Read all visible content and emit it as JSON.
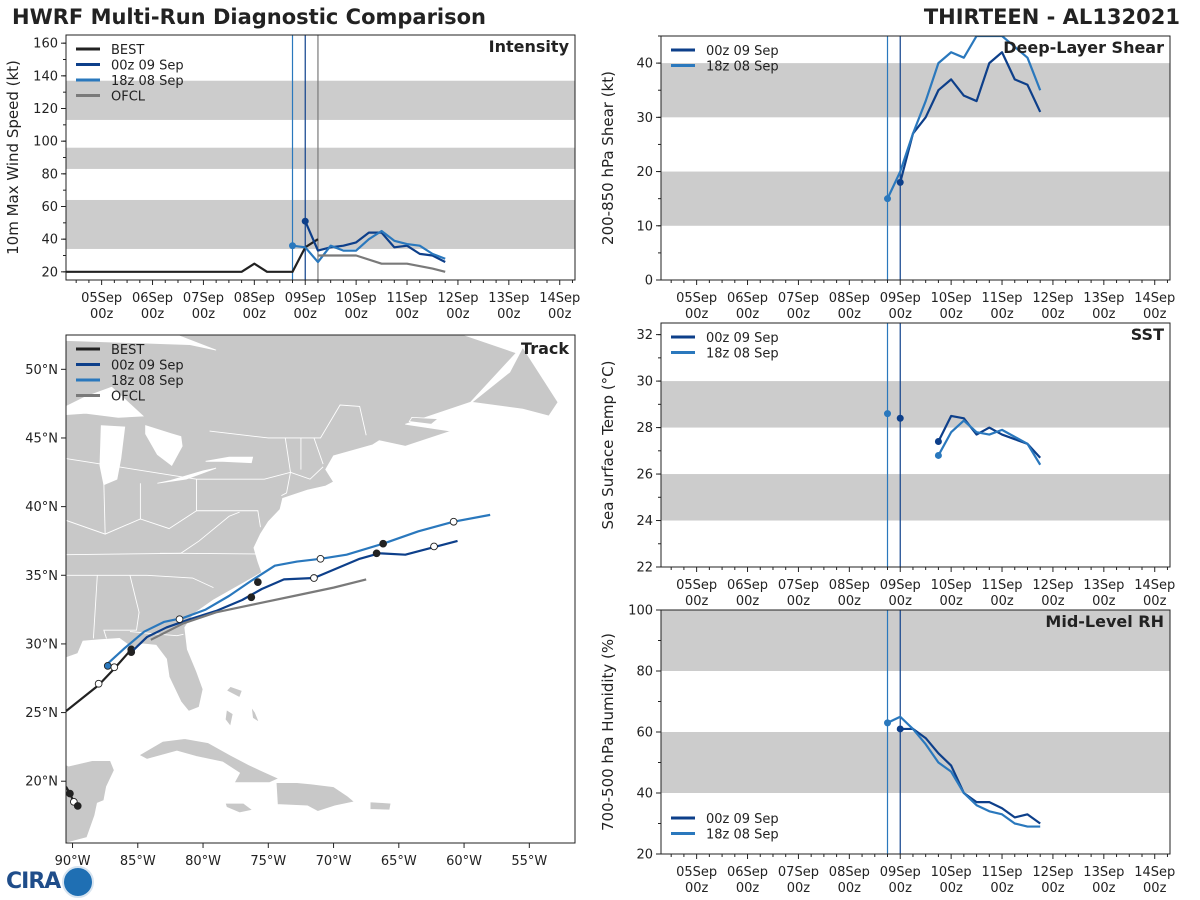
{
  "header": {
    "title": "HWRF Multi-Run Diagnostic Comparison",
    "storm": "THIRTEEN - AL132021"
  },
  "logo": {
    "text": "CIRA"
  },
  "colors": {
    "best": "#222222",
    "run00z": "#0d3f8a",
    "run18z": "#2a78bd",
    "ofcl": "#7a7a7a",
    "band": "#cccccc"
  },
  "chart_data": [
    {
      "id": "intensity",
      "type": "line",
      "title": "Intensity",
      "ylabel": "10m Max Wind Speed (kt)",
      "ylim": [
        15,
        165
      ],
      "yticks": [
        20,
        40,
        60,
        80,
        100,
        120,
        140,
        160
      ],
      "bands": [
        [
          34,
          64
        ],
        [
          83,
          96
        ],
        [
          113,
          137
        ]
      ],
      "xdays": [
        "05Sep",
        "06Sep",
        "07Sep",
        "08Sep",
        "09Sep",
        "10Sep",
        "11Sep",
        "12Sep",
        "13Sep",
        "14Sep"
      ],
      "xsub": "00z",
      "vlines": [
        {
          "x": 8.75,
          "series": "18z 08 Sep"
        },
        {
          "x": 9.0,
          "series": "00z 09 Sep"
        },
        {
          "x": 9.25,
          "series": "OFCL"
        }
      ],
      "legend": [
        "BEST",
        "00z 09 Sep",
        "18z 08 Sep",
        "OFCL"
      ],
      "series": [
        {
          "name": "BEST",
          "x": [
            4.0,
            7.75,
            8.0,
            8.25,
            8.5,
            8.75,
            9.0,
            9.25
          ],
          "y": [
            20,
            20,
            25,
            20,
            20,
            20,
            35,
            40
          ]
        },
        {
          "name": "00z 09 Sep",
          "x": [
            9.0,
            9.25,
            9.5,
            9.75,
            10.0,
            10.25,
            10.5,
            10.75,
            11.0,
            11.25,
            11.5,
            11.75
          ],
          "y": [
            51,
            33,
            35,
            36,
            38,
            44,
            44,
            35,
            36,
            31,
            30,
            26
          ]
        },
        {
          "name": "18z 08 Sep",
          "x": [
            8.75,
            9.0,
            9.25,
            9.5,
            9.75,
            10.0,
            10.25,
            10.5,
            10.75,
            11.0,
            11.25,
            11.5,
            11.75
          ],
          "y": [
            36,
            35,
            26,
            36,
            33,
            33,
            40,
            45,
            39,
            37,
            36,
            31,
            28
          ]
        },
        {
          "name": "OFCL",
          "x": [
            9.25,
            9.5,
            10.0,
            10.5,
            11.0,
            11.5,
            11.75
          ],
          "y": [
            30,
            30,
            30,
            25,
            25,
            22,
            20
          ]
        }
      ]
    },
    {
      "id": "shear",
      "type": "line",
      "title": "Deep-Layer Shear",
      "ylabel": "200-850 hPa Shear (kt)",
      "ylim": [
        0,
        45
      ],
      "yticks": [
        0,
        10,
        20,
        30,
        40
      ],
      "bands": [
        [
          10,
          20
        ],
        [
          30,
          40
        ]
      ],
      "xdays": [
        "05Sep",
        "06Sep",
        "07Sep",
        "08Sep",
        "09Sep",
        "10Sep",
        "11Sep",
        "12Sep",
        "13Sep",
        "14Sep"
      ],
      "xsub": "00z",
      "vlines": [
        {
          "x": 8.75,
          "series": "18z 08 Sep"
        },
        {
          "x": 9.0,
          "series": "00z 09 Sep"
        }
      ],
      "legend": [
        "00z 09 Sep",
        "18z 08 Sep"
      ],
      "series": [
        {
          "name": "00z 09 Sep",
          "x": [
            9.0,
            9.25,
            9.5,
            9.75,
            10.0,
            10.25,
            10.5,
            10.75,
            11.0,
            11.25,
            11.5,
            11.75
          ],
          "y": [
            18,
            27,
            30,
            35,
            37,
            34,
            33,
            40,
            42,
            37,
            36,
            31
          ]
        },
        {
          "name": "18z 08 Sep",
          "x": [
            8.75,
            9.0,
            9.25,
            9.5,
            9.75,
            10.0,
            10.25,
            10.5,
            10.75,
            11.0,
            11.25,
            11.5,
            11.75
          ],
          "y": [
            15,
            20,
            27,
            33,
            40,
            42,
            41,
            45,
            45,
            45,
            43,
            41,
            35
          ]
        }
      ]
    },
    {
      "id": "sst",
      "type": "line",
      "title": "SST",
      "ylabel": "Sea Surface Temp (°C)",
      "ylim": [
        22,
        32.5
      ],
      "yticks": [
        22,
        24,
        26,
        28,
        30,
        32
      ],
      "bands": [
        [
          24,
          26
        ],
        [
          28,
          30
        ]
      ],
      "xdays": [
        "05Sep",
        "06Sep",
        "07Sep",
        "08Sep",
        "09Sep",
        "10Sep",
        "11Sep",
        "12Sep",
        "13Sep",
        "14Sep"
      ],
      "xsub": "00z",
      "vlines": [
        {
          "x": 8.75,
          "series": "18z 08 Sep"
        },
        {
          "x": 9.0,
          "series": "00z 09 Sep"
        }
      ],
      "legend": [
        "00z 09 Sep",
        "18z 08 Sep"
      ],
      "series": [
        {
          "name": "00z 09 Sep",
          "x": [
            9.0
          ],
          "y": [
            28.4
          ]
        },
        {
          "name": "00z 09 Sep",
          "x": [
            9.75,
            10.0,
            10.25,
            10.5,
            10.75,
            11.0,
            11.25,
            11.5,
            11.75
          ],
          "y": [
            27.4,
            28.5,
            28.4,
            27.7,
            28.0,
            27.7,
            27.5,
            27.3,
            26.7
          ]
        },
        {
          "name": "18z 08 Sep",
          "x": [
            8.75
          ],
          "y": [
            28.6
          ]
        },
        {
          "name": "18z 08 Sep",
          "x": [
            9.75,
            10.0,
            10.25,
            10.5,
            10.75,
            11.0,
            11.25,
            11.5,
            11.75
          ],
          "y": [
            26.8,
            27.8,
            28.3,
            27.8,
            27.7,
            27.9,
            27.6,
            27.3,
            26.4
          ]
        }
      ]
    },
    {
      "id": "rh",
      "type": "line",
      "title": "Mid-Level RH",
      "ylabel": "700-500 hPa Humidity (%)",
      "ylim": [
        20,
        100
      ],
      "yticks": [
        20,
        40,
        60,
        80,
        100
      ],
      "bands": [
        [
          40,
          60
        ],
        [
          80,
          100
        ]
      ],
      "xdays": [
        "05Sep",
        "06Sep",
        "07Sep",
        "08Sep",
        "09Sep",
        "10Sep",
        "11Sep",
        "12Sep",
        "13Sep",
        "14Sep"
      ],
      "xsub": "00z",
      "vlines": [
        {
          "x": 8.75,
          "series": "18z 08 Sep"
        },
        {
          "x": 9.0,
          "series": "00z 09 Sep"
        }
      ],
      "legend": [
        "00z 09 Sep",
        "18z 08 Sep"
      ],
      "legend_pos": "bottom-left",
      "series": [
        {
          "name": "00z 09 Sep",
          "x": [
            9.0,
            9.25,
            9.5,
            9.75,
            10.0,
            10.25,
            10.5,
            10.75,
            11.0,
            11.25,
            11.5,
            11.75
          ],
          "y": [
            61,
            61,
            58,
            53,
            49,
            40,
            37,
            37,
            35,
            32,
            33,
            30
          ]
        },
        {
          "name": "18z 08 Sep",
          "x": [
            8.75,
            9.0,
            9.25,
            9.5,
            9.75,
            10.0,
            10.25,
            10.5,
            10.75,
            11.0,
            11.25,
            11.5,
            11.75
          ],
          "y": [
            63,
            65,
            61,
            56,
            50,
            47,
            40,
            36,
            34,
            33,
            30,
            29,
            29
          ]
        }
      ]
    },
    {
      "id": "track",
      "type": "scatter",
      "title": "Track",
      "xlim": [
        -90.5,
        -51.5
      ],
      "ylim": [
        15.5,
        52.5
      ],
      "xticks": [
        -90,
        -85,
        -80,
        -75,
        -70,
        -65,
        -60,
        -55
      ],
      "xticklabels": [
        "90°W",
        "85°W",
        "80°W",
        "75°W",
        "70°W",
        "65°W",
        "60°W",
        "55°W"
      ],
      "yticks": [
        20,
        25,
        30,
        35,
        40,
        45,
        50
      ],
      "yticklabels": [
        "20°N",
        "25°N",
        "30°N",
        "35°N",
        "40°N",
        "45°N",
        "50°N"
      ],
      "legend": [
        "BEST",
        "00z 09 Sep",
        "18z 08 Sep",
        "OFCL"
      ],
      "series": [
        {
          "name": "BEST",
          "lon": [
            -90.5,
            -88.0,
            -86.8,
            -85.5
          ],
          "lat": [
            25.1,
            27.0,
            28.2,
            29.6
          ],
          "marker_lon": [
            -88.0,
            -86.8,
            -85.5
          ],
          "marker_lat": [
            27.1,
            28.3,
            29.6
          ],
          "marker_fill": [
            "#ffffff",
            "#ffffff",
            "#222222"
          ]
        },
        {
          "name": "BEST",
          "lon": [
            -90.5,
            -90.2,
            -89.9,
            -89.6
          ],
          "lat": [
            19.6,
            19.1,
            18.5,
            18.2
          ],
          "marker_lon": [
            -90.2,
            -89.9,
            -89.6
          ],
          "marker_lat": [
            19.1,
            18.5,
            18.2
          ],
          "marker_fill": [
            "#222222",
            "#ffffff",
            "#222222"
          ]
        },
        {
          "name": "00z 09 Sep",
          "lon": [
            -85.5,
            -84.3,
            -82.8,
            -81.0,
            -79.0,
            -77.0,
            -75.5,
            -73.8,
            -71.5,
            -69.5,
            -68.0,
            -66.5,
            -64.5,
            -62.5,
            -60.5
          ],
          "lat": [
            29.4,
            30.5,
            31.2,
            31.8,
            32.4,
            33.2,
            34.0,
            34.7,
            34.8,
            35.6,
            36.2,
            36.6,
            36.5,
            37.0,
            37.5
          ],
          "marker_lon": [
            -85.5,
            -76.3,
            -71.5,
            -66.7,
            -62.3
          ],
          "marker_lat": [
            29.4,
            33.4,
            34.8,
            36.6,
            37.1
          ],
          "marker_fill": [
            "#222222",
            "#222222",
            "#ffffff",
            "#222222",
            "#ffffff"
          ]
        },
        {
          "name": "18z 08 Sep",
          "lon": [
            -87.5,
            -86.0,
            -84.5,
            -83.0,
            -81.5,
            -79.8,
            -78.0,
            -76.3,
            -74.5,
            -72.8,
            -71.0,
            -69.0,
            -66.2,
            -63.5,
            -60.8,
            -58.0
          ],
          "lat": [
            28.4,
            29.7,
            30.9,
            31.6,
            31.9,
            32.5,
            33.5,
            34.6,
            35.7,
            36.0,
            36.2,
            36.5,
            37.3,
            38.2,
            38.9,
            39.4
          ],
          "marker_lon": [
            -87.3,
            -81.8,
            -75.8,
            -71.0,
            -66.2,
            -60.8
          ],
          "marker_lat": [
            28.4,
            31.8,
            34.5,
            36.2,
            37.3,
            38.9
          ],
          "marker_fill": [
            "#2a78bd",
            "#ffffff",
            "#222222",
            "#ffffff",
            "#222222",
            "#ffffff"
          ]
        },
        {
          "name": "OFCL",
          "lon": [
            -84.0,
            -81.5,
            -79.0,
            -76.0,
            -73.0,
            -70.0,
            -67.5
          ],
          "lat": [
            30.3,
            31.5,
            32.3,
            32.9,
            33.5,
            34.1,
            34.7
          ],
          "marker_lon": [],
          "marker_lat": [],
          "marker_fill": []
        }
      ]
    }
  ]
}
